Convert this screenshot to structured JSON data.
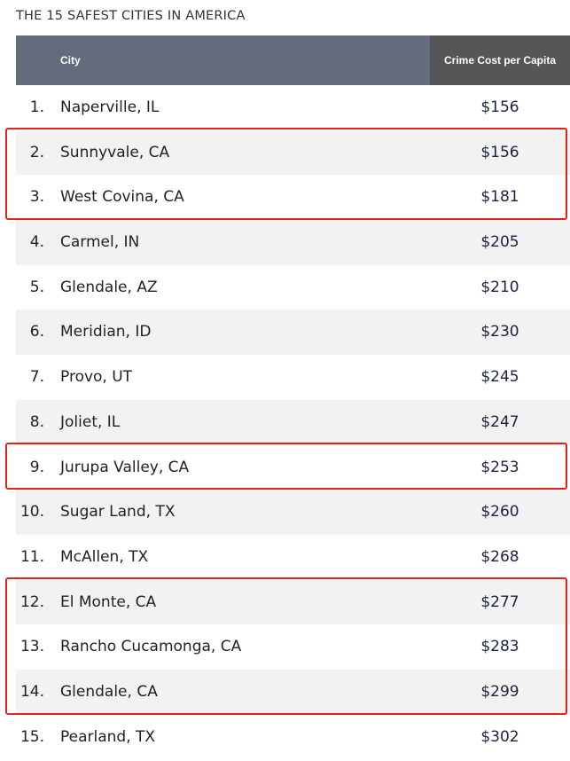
{
  "title": "THE 15 SAFEST CITIES IN AMERICA",
  "header": {
    "city": "City",
    "cost": "Crime Cost per Capita"
  },
  "colors": {
    "header_bg": "#646c7b",
    "header_cost_bg": "#565656",
    "stripe": "#f2f2f2",
    "highlight": "#e0241c"
  },
  "chart_data": {
    "type": "table",
    "title": "THE 15 SAFEST CITIES IN AMERICA",
    "columns": [
      "",
      "City",
      "Crime Cost per Capita"
    ],
    "rows": [
      {
        "rank": "1.",
        "city": "Naperville, IL",
        "cost": "$156",
        "value": 156,
        "highlighted": false
      },
      {
        "rank": "2.",
        "city": "Sunnyvale, CA",
        "cost": "$156",
        "value": 156,
        "highlighted": true
      },
      {
        "rank": "3.",
        "city": "West Covina, CA",
        "cost": "$181",
        "value": 181,
        "highlighted": true
      },
      {
        "rank": "4.",
        "city": "Carmel, IN",
        "cost": "$205",
        "value": 205,
        "highlighted": false
      },
      {
        "rank": "5.",
        "city": "Glendale, AZ",
        "cost": "$210",
        "value": 210,
        "highlighted": false
      },
      {
        "rank": "6.",
        "city": "Meridian, ID",
        "cost": "$230",
        "value": 230,
        "highlighted": false
      },
      {
        "rank": "7.",
        "city": "Provo, UT",
        "cost": "$245",
        "value": 245,
        "highlighted": false
      },
      {
        "rank": "8.",
        "city": "Joliet, IL",
        "cost": "$247",
        "value": 247,
        "highlighted": false
      },
      {
        "rank": "9.",
        "city": "Jurupa Valley, CA",
        "cost": "$253",
        "value": 253,
        "highlighted": true
      },
      {
        "rank": "10.",
        "city": "Sugar Land, TX",
        "cost": "$260",
        "value": 260,
        "highlighted": false
      },
      {
        "rank": "11.",
        "city": "McAllen, TX",
        "cost": "$268",
        "value": 268,
        "highlighted": false
      },
      {
        "rank": "12.",
        "city": "El Monte, CA",
        "cost": "$277",
        "value": 277,
        "highlighted": true
      },
      {
        "rank": "13.",
        "city": "Rancho Cucamonga, CA",
        "cost": "$283",
        "value": 283,
        "highlighted": true
      },
      {
        "rank": "14.",
        "city": "Glendale, CA",
        "cost": "$299",
        "value": 299,
        "highlighted": true
      },
      {
        "rank": "15.",
        "city": "Pearland, TX",
        "cost": "$302",
        "value": 302,
        "highlighted": false
      }
    ],
    "highlight_groups": [
      {
        "first": "2.",
        "last": "3."
      },
      {
        "first": "9.",
        "last": "9."
      },
      {
        "first": "12.",
        "last": "14."
      }
    ]
  }
}
